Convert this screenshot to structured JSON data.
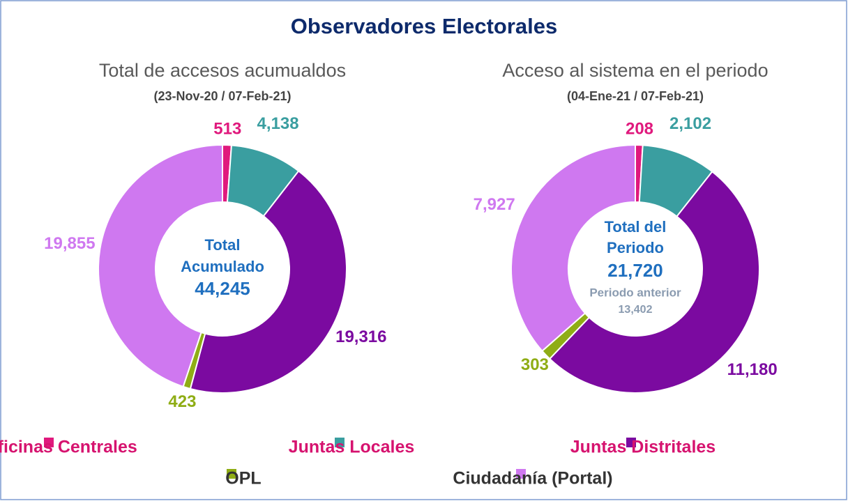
{
  "title": "Observadores Electorales",
  "chart_data": [
    {
      "type": "donut",
      "title": "Total de accesos acumualdos",
      "subtitle": "(23-Nov-20 / 07-Feb-21)",
      "categories": [
        "Oficinas Centrales",
        "Juntas Locales",
        "Juntas Distritales",
        "OPL",
        "Ciudadanía (Portal)"
      ],
      "colors": [
        "#e0197d",
        "#3a9ea0",
        "#7b0aa0",
        "#8fad15",
        "#cf78f0"
      ],
      "values": [
        513,
        4138,
        19316,
        423,
        19855
      ],
      "value_labels": [
        "513",
        "4,138",
        "19,316",
        "423",
        "19,855"
      ],
      "center_texts": [
        "Total",
        "Acumulado",
        "44,245"
      ]
    },
    {
      "type": "donut",
      "title": "Acceso al sistema en el periodo",
      "subtitle": "(04-Ene-21 / 07-Feb-21)",
      "categories": [
        "Oficinas Centrales",
        "Juntas Locales",
        "Juntas Distritales",
        "OPL",
        "Ciudadanía (Portal)"
      ],
      "colors": [
        "#e0197d",
        "#3a9ea0",
        "#7b0aa0",
        "#8fad15",
        "#cf78f0"
      ],
      "values": [
        208,
        2102,
        11180,
        303,
        7927
      ],
      "value_labels": [
        "208",
        "2,102",
        "11,180",
        "303",
        "7,927"
      ],
      "center_texts": [
        "Total del",
        "Periodo",
        "21,720"
      ],
      "previous_period": {
        "label": "Periodo anterior",
        "value": "13,402"
      }
    }
  ]
}
